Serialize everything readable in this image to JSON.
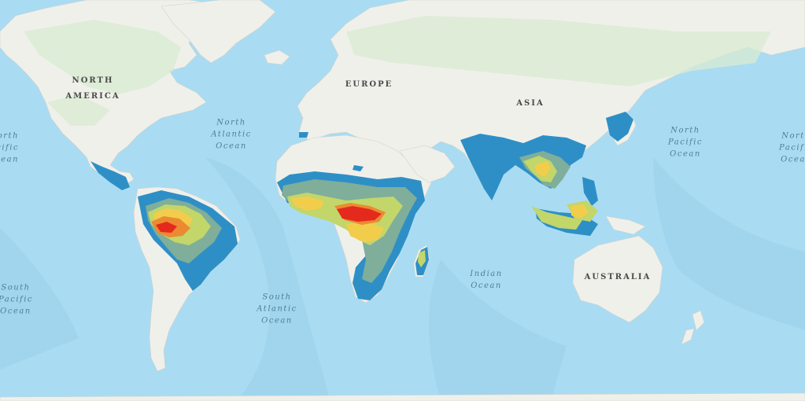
{
  "colors": {
    "ocean": "#a9dcf2",
    "land": "#f0f0eb",
    "vegetation": "#d9ecd2",
    "class_1": "#2e8fc6",
    "class_2": "#7fae9a",
    "class_3": "#c2d66a",
    "class_4": "#f2cd4c",
    "class_5": "#ec8a32",
    "class_6": "#e32a1c"
  },
  "labels": {
    "north_america": [
      "NORTH",
      "AMERICA"
    ],
    "europe": "EUROPE",
    "asia": "ASIA",
    "australia": "AUSTRALIA",
    "north_atlantic": [
      "North",
      "Atlantic",
      "Ocean"
    ],
    "south_atlantic": [
      "South",
      "Atlantic",
      "Ocean"
    ],
    "indian_ocean": [
      "Indian",
      "Ocean"
    ],
    "north_pacific_east": [
      "North",
      "Pacific",
      "Ocean"
    ],
    "north_pacific_west": [
      "North",
      "Pacific",
      "Ocean"
    ],
    "south_pacific": [
      "South",
      "Pacific",
      "Ocean"
    ]
  }
}
